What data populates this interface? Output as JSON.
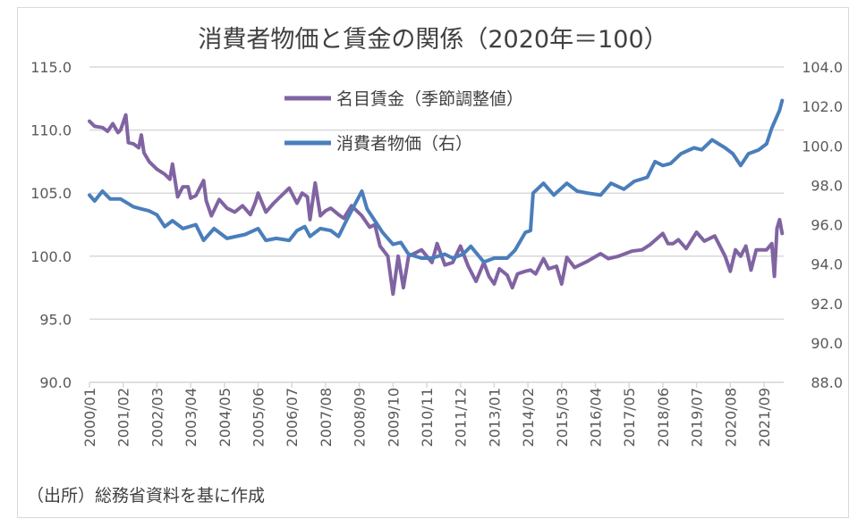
{
  "chart_data": {
    "type": "line",
    "title": "消費者物価と賃金の関係（2020年＝100）",
    "source_note": "（出所）総務省資料を基に作成",
    "x_tick_labels": [
      "2000/01",
      "2001/02",
      "2002/03",
      "2003/04",
      "2004/05",
      "2005/06",
      "2006/07",
      "2007/08",
      "2008/09",
      "2009/10",
      "2010/11",
      "2011/12",
      "2013/01",
      "2014/02",
      "2015/03",
      "2016/04",
      "2017/05",
      "2018/06",
      "2019/07",
      "2020/08",
      "2021/09"
    ],
    "x_range": [
      "2000/01",
      "2022/04"
    ],
    "y_left": {
      "range": [
        90,
        115
      ],
      "ticks": [
        "90.0",
        "95.0",
        "100.0",
        "105.0",
        "110.0",
        "115.0"
      ]
    },
    "y_right": {
      "range": [
        88,
        104
      ],
      "ticks": [
        "88.0",
        "90.0",
        "92.0",
        "94.0",
        "96.0",
        "98.0",
        "100.0",
        "102.0",
        "104.0"
      ]
    },
    "grid": true,
    "legend_position": "top-center",
    "series": [
      {
        "name": "名目賃金（季節調整値）",
        "axis": "left",
        "color": "#8064a2",
        "points": [
          [
            "2000/01",
            110.7
          ],
          [
            "2000/03",
            110.3
          ],
          [
            "2000/06",
            110.2
          ],
          [
            "2000/08",
            109.9
          ],
          [
            "2000/10",
            110.5
          ],
          [
            "2000/12",
            109.8
          ],
          [
            "2001/01",
            110.0
          ],
          [
            "2001/03",
            111.2
          ],
          [
            "2001/04",
            109.0
          ],
          [
            "2001/06",
            108.9
          ],
          [
            "2001/08",
            108.6
          ],
          [
            "2001/09",
            109.6
          ],
          [
            "2001/10",
            108.2
          ],
          [
            "2001/12",
            107.5
          ],
          [
            "2002/03",
            106.9
          ],
          [
            "2002/06",
            106.5
          ],
          [
            "2002/08",
            106.1
          ],
          [
            "2002/09",
            107.3
          ],
          [
            "2002/11",
            104.7
          ],
          [
            "2003/01",
            105.5
          ],
          [
            "2003/03",
            105.5
          ],
          [
            "2003/04",
            104.6
          ],
          [
            "2003/06",
            104.8
          ],
          [
            "2003/09",
            106.0
          ],
          [
            "2003/10",
            104.4
          ],
          [
            "2003/12",
            103.2
          ],
          [
            "2004/03",
            104.5
          ],
          [
            "2004/06",
            103.8
          ],
          [
            "2004/09",
            103.5
          ],
          [
            "2004/12",
            104.0
          ],
          [
            "2005/03",
            103.3
          ],
          [
            "2005/05",
            104.3
          ],
          [
            "2005/06",
            105.0
          ],
          [
            "2005/09",
            103.5
          ],
          [
            "2005/12",
            104.2
          ],
          [
            "2006/03",
            104.8
          ],
          [
            "2006/06",
            105.4
          ],
          [
            "2006/09",
            104.2
          ],
          [
            "2006/11",
            105.0
          ],
          [
            "2007/01",
            104.7
          ],
          [
            "2007/02",
            102.9
          ],
          [
            "2007/04",
            105.8
          ],
          [
            "2007/06",
            103.2
          ],
          [
            "2007/08",
            103.6
          ],
          [
            "2007/10",
            103.8
          ],
          [
            "2008/01",
            103.3
          ],
          [
            "2008/03",
            103.0
          ],
          [
            "2008/06",
            104.0
          ],
          [
            "2008/08",
            103.6
          ],
          [
            "2008/10",
            103.2
          ],
          [
            "2009/01",
            102.3
          ],
          [
            "2009/03",
            102.5
          ],
          [
            "2009/05",
            100.8
          ],
          [
            "2009/08",
            100.0
          ],
          [
            "2009/10",
            97.0
          ],
          [
            "2009/12",
            100.0
          ],
          [
            "2010/02",
            97.5
          ],
          [
            "2010/04",
            100.0
          ],
          [
            "2010/07",
            100.3
          ],
          [
            "2010/09",
            100.5
          ],
          [
            "2011/01",
            99.5
          ],
          [
            "2011/03",
            101.0
          ],
          [
            "2011/06",
            99.3
          ],
          [
            "2011/09",
            99.5
          ],
          [
            "2011/12",
            100.8
          ],
          [
            "2012/03",
            99.2
          ],
          [
            "2012/06",
            98.0
          ],
          [
            "2012/09",
            99.5
          ],
          [
            "2012/11",
            98.4
          ],
          [
            "2013/01",
            97.8
          ],
          [
            "2013/03",
            99.0
          ],
          [
            "2013/06",
            98.5
          ],
          [
            "2013/08",
            97.5
          ],
          [
            "2013/10",
            98.6
          ],
          [
            "2014/01",
            98.8
          ],
          [
            "2014/03",
            98.9
          ],
          [
            "2014/05",
            98.6
          ],
          [
            "2014/08",
            99.8
          ],
          [
            "2014/10",
            99.0
          ],
          [
            "2015/01",
            99.2
          ],
          [
            "2015/03",
            97.8
          ],
          [
            "2015/05",
            99.9
          ],
          [
            "2015/08",
            99.1
          ],
          [
            "2016/01",
            99.6
          ],
          [
            "2016/06",
            100.2
          ],
          [
            "2016/09",
            99.8
          ],
          [
            "2017/01",
            100.0
          ],
          [
            "2017/06",
            100.4
          ],
          [
            "2017/10",
            100.5
          ],
          [
            "2018/01",
            100.9
          ],
          [
            "2018/06",
            101.8
          ],
          [
            "2018/08",
            101.0
          ],
          [
            "2018/10",
            101.0
          ],
          [
            "2018/12",
            101.3
          ],
          [
            "2019/03",
            100.6
          ],
          [
            "2019/07",
            101.9
          ],
          [
            "2019/10",
            101.2
          ],
          [
            "2020/02",
            101.6
          ],
          [
            "2020/06",
            100.0
          ],
          [
            "2020/08",
            98.8
          ],
          [
            "2020/10",
            100.5
          ],
          [
            "2020/12",
            100.0
          ],
          [
            "2021/02",
            100.8
          ],
          [
            "2021/04",
            98.9
          ],
          [
            "2021/06",
            100.5
          ],
          [
            "2021/10",
            100.5
          ],
          [
            "2021/12",
            101.0
          ],
          [
            "2022/01",
            98.4
          ],
          [
            "2022/02",
            102.2
          ],
          [
            "2022/03",
            102.9
          ],
          [
            "2022/04",
            101.8
          ]
        ]
      },
      {
        "name": "消費者物価（右）",
        "axis": "right",
        "color": "#4a7ebb",
        "points": [
          [
            "2000/01",
            97.5
          ],
          [
            "2000/03",
            97.2
          ],
          [
            "2000/06",
            97.7
          ],
          [
            "2000/09",
            97.3
          ],
          [
            "2001/01",
            97.3
          ],
          [
            "2001/06",
            96.9
          ],
          [
            "2001/09",
            96.8
          ],
          [
            "2001/12",
            96.7
          ],
          [
            "2002/03",
            96.5
          ],
          [
            "2002/06",
            95.9
          ],
          [
            "2002/09",
            96.2
          ],
          [
            "2003/01",
            95.8
          ],
          [
            "2003/06",
            96.0
          ],
          [
            "2003/09",
            95.2
          ],
          [
            "2004/01",
            95.8
          ],
          [
            "2004/06",
            95.3
          ],
          [
            "2005/01",
            95.5
          ],
          [
            "2005/06",
            95.8
          ],
          [
            "2005/09",
            95.2
          ],
          [
            "2006/01",
            95.3
          ],
          [
            "2006/06",
            95.2
          ],
          [
            "2006/09",
            95.7
          ],
          [
            "2006/12",
            95.9
          ],
          [
            "2007/02",
            95.4
          ],
          [
            "2007/06",
            95.8
          ],
          [
            "2007/10",
            95.7
          ],
          [
            "2008/01",
            95.4
          ],
          [
            "2008/04",
            96.2
          ],
          [
            "2008/08",
            97.2
          ],
          [
            "2008/10",
            97.7
          ],
          [
            "2008/12",
            96.8
          ],
          [
            "2009/03",
            96.2
          ],
          [
            "2009/06",
            95.6
          ],
          [
            "2009/10",
            95.0
          ],
          [
            "2010/01",
            95.1
          ],
          [
            "2010/04",
            94.5
          ],
          [
            "2010/09",
            94.3
          ],
          [
            "2011/01",
            94.3
          ],
          [
            "2011/06",
            94.5
          ],
          [
            "2011/09",
            94.3
          ],
          [
            "2012/01",
            94.5
          ],
          [
            "2012/04",
            94.9
          ],
          [
            "2012/09",
            94.1
          ],
          [
            "2013/01",
            94.3
          ],
          [
            "2013/06",
            94.3
          ],
          [
            "2013/09",
            94.7
          ],
          [
            "2014/01",
            95.6
          ],
          [
            "2014/03",
            95.7
          ],
          [
            "2014/04",
            97.6
          ],
          [
            "2014/08",
            98.1
          ],
          [
            "2014/12",
            97.5
          ],
          [
            "2015/05",
            98.1
          ],
          [
            "2015/09",
            97.7
          ],
          [
            "2016/01",
            97.6
          ],
          [
            "2016/06",
            97.5
          ],
          [
            "2016/10",
            98.1
          ],
          [
            "2017/03",
            97.8
          ],
          [
            "2017/07",
            98.2
          ],
          [
            "2017/12",
            98.4
          ],
          [
            "2018/03",
            99.2
          ],
          [
            "2018/06",
            99.0
          ],
          [
            "2018/09",
            99.1
          ],
          [
            "2019/01",
            99.6
          ],
          [
            "2019/06",
            99.9
          ],
          [
            "2019/09",
            99.8
          ],
          [
            "2020/01",
            100.3
          ],
          [
            "2020/06",
            99.9
          ],
          [
            "2020/09",
            99.6
          ],
          [
            "2020/12",
            99.0
          ],
          [
            "2021/03",
            99.6
          ],
          [
            "2021/07",
            99.8
          ],
          [
            "2021/10",
            100.1
          ],
          [
            "2021/12",
            100.9
          ],
          [
            "2022/03",
            101.8
          ],
          [
            "2022/04",
            102.3
          ]
        ]
      }
    ]
  }
}
